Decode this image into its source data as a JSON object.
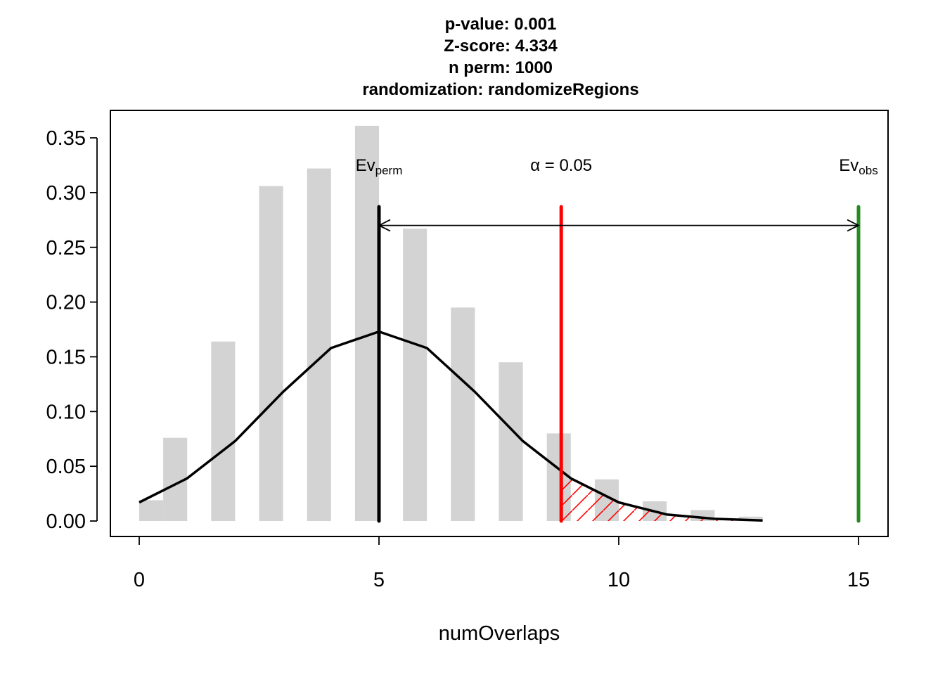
{
  "title_lines": [
    "p-value:  0.001",
    "Z-score:  4.334",
    "n perm:  1000",
    "randomization:  randomizeRegions"
  ],
  "chart_data": {
    "type": "bar",
    "xlabel": "numOverlaps",
    "ylabel": "",
    "xlim": [
      0,
      15
    ],
    "ylim": [
      0,
      0.35
    ],
    "x_ticks": [
      0,
      5,
      10,
      15
    ],
    "x_tick_labels": [
      "0",
      "5",
      "10",
      "15"
    ],
    "y_ticks": [
      0,
      0.05,
      0.1,
      0.15,
      0.2,
      0.25,
      0.3,
      0.35
    ],
    "y_tick_labels": [
      "0.00",
      "0.05",
      "0.10",
      "0.15",
      "0.20",
      "0.25",
      "0.30",
      "0.35"
    ],
    "histogram": {
      "color": "#d3d3d3",
      "bars": [
        {
          "x": 0,
          "value": 0.019
        },
        {
          "x": 1,
          "value": 0.076
        },
        {
          "x": 2,
          "value": 0.164
        },
        {
          "x": 3,
          "value": 0.306
        },
        {
          "x": 4,
          "value": 0.322
        },
        {
          "x": 5,
          "value": 0.361
        },
        {
          "x": 6,
          "value": 0.267
        },
        {
          "x": 7,
          "value": 0.195
        },
        {
          "x": 8,
          "value": 0.145
        },
        {
          "x": 9,
          "value": 0.08
        },
        {
          "x": 10,
          "value": 0.038
        },
        {
          "x": 11,
          "value": 0.018
        },
        {
          "x": 12,
          "value": 0.01
        },
        {
          "x": 13,
          "value": 0.004
        }
      ]
    },
    "density_curve": {
      "color": "#000000",
      "x": [
        0,
        1,
        2,
        3,
        4,
        5,
        6,
        7,
        8,
        9,
        10,
        11,
        12,
        13
      ],
      "y": [
        0.017,
        0.039,
        0.073,
        0.118,
        0.158,
        0.173,
        0.158,
        0.118,
        0.073,
        0.039,
        0.017,
        0.006,
        0.002,
        0.0005
      ]
    },
    "reference_lines": [
      {
        "name": "Ev_perm",
        "x": 5,
        "top": 0.287,
        "color": "#000000"
      },
      {
        "name": "alpha",
        "x": 8.8,
        "top": 0.287,
        "color": "#ff0000"
      },
      {
        "name": "Ev_obs",
        "x": 15,
        "top": 0.287,
        "color": "#228b22"
      }
    ],
    "arrow": {
      "from": 5,
      "to": 15,
      "y": 0.27
    },
    "shaded_region": {
      "from": 8.8,
      "to": 13,
      "color": "#ff0000",
      "pattern": "hatched"
    },
    "annotations": {
      "ev_perm": {
        "main": "Ev",
        "sub": "perm",
        "x": 5,
        "y": 0.32
      },
      "alpha": {
        "text": "α = 0.05",
        "x": 8.8,
        "y": 0.32
      },
      "ev_obs": {
        "main": "Ev",
        "sub": "obs",
        "x": 15,
        "y": 0.32
      }
    }
  }
}
